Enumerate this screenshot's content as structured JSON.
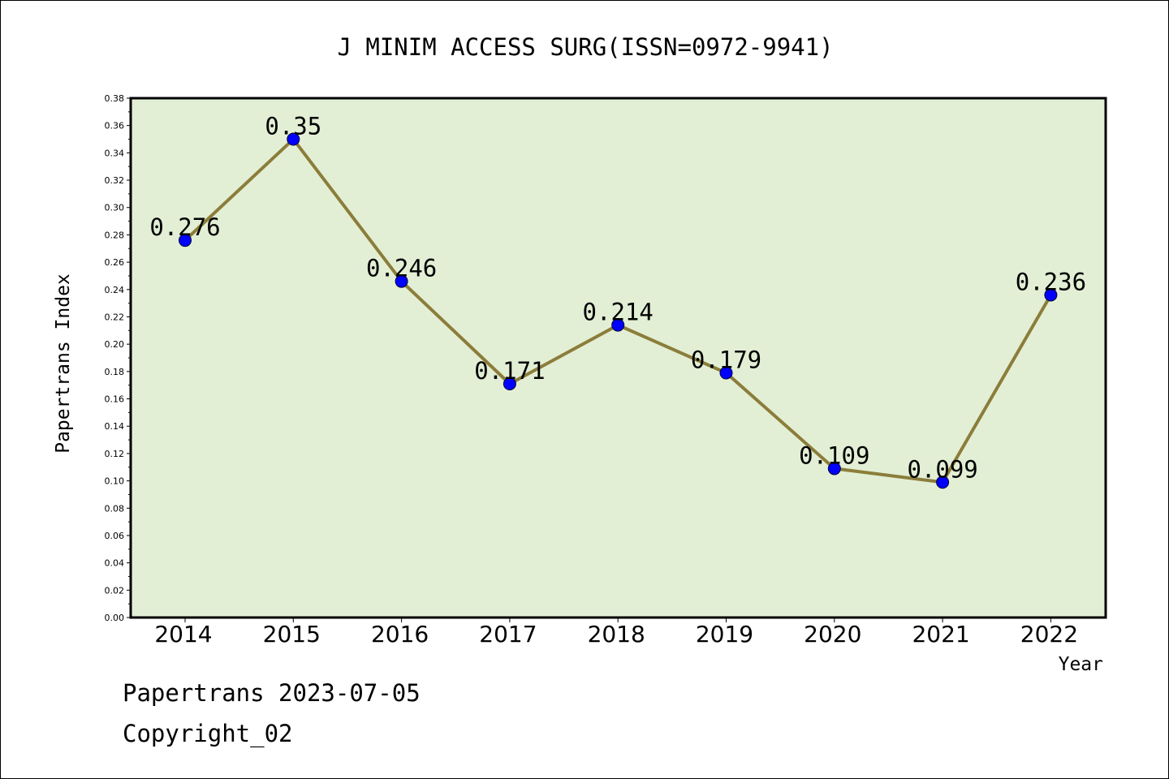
{
  "chart_data": {
    "type": "line",
    "title": "J MINIM ACCESS SURG(ISSN=0972-9941)",
    "xlabel": "Year",
    "ylabel": "Papertrans Index",
    "categories": [
      "2014",
      "2015",
      "2016",
      "2017",
      "2018",
      "2019",
      "2020",
      "2021",
      "2022"
    ],
    "values": [
      0.276,
      0.35,
      0.246,
      0.171,
      0.214,
      0.179,
      0.109,
      0.099,
      0.236
    ],
    "data_labels": [
      "0.276",
      "0.35",
      "0.246",
      "0.171",
      "0.214",
      "0.179",
      "0.109",
      "0.099",
      "0.236"
    ],
    "ylim": [
      0,
      0.38
    ],
    "yticks": [
      "0.00",
      "0.02",
      "0.04",
      "0.06",
      "0.08",
      "0.10",
      "0.12",
      "0.14",
      "0.16",
      "0.18",
      "0.20",
      "0.22",
      "0.24",
      "0.26",
      "0.28",
      "0.30",
      "0.32",
      "0.34",
      "0.36",
      "0.38"
    ],
    "grid": false,
    "colors": {
      "plot_background": "#e2efd5",
      "line": "#8b7d3a",
      "marker": "#0000ff"
    }
  },
  "footer": {
    "line1": "Papertrans 2023-07-05",
    "line2": "Copyright_02"
  }
}
